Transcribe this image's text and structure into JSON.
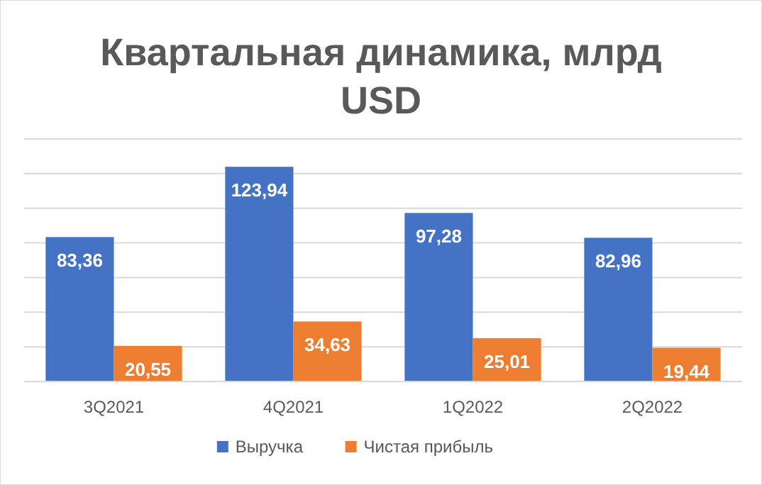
{
  "chart_data": {
    "type": "bar",
    "title": "Квартальная динамика, млрд USD",
    "categories": [
      "3Q2021",
      "4Q2021",
      "1Q2022",
      "2Q2022"
    ],
    "series": [
      {
        "name": "Выручка",
        "color": "#4472c4",
        "values": [
          83.36,
          123.94,
          97.28,
          82.96
        ],
        "value_labels": [
          "83,36",
          "123,94",
          "97,28",
          "82,96"
        ]
      },
      {
        "name": "Чистая прибыль",
        "color": "#ed7d31",
        "values": [
          20.55,
          34.63,
          25.01,
          19.44
        ],
        "value_labels": [
          "20,55",
          "34,63",
          "25,01",
          "19,44"
        ]
      }
    ],
    "ylim": [
      0,
      140
    ],
    "yticks": [
      {
        "value": 0,
        "label": null
      },
      {
        "value": 20,
        "label": null
      },
      {
        "value": 40,
        "label": null
      },
      {
        "value": 60,
        "label": null
      },
      {
        "value": 80,
        "label": null
      },
      {
        "value": 100,
        "label": null
      },
      {
        "value": 120,
        "label": null
      },
      {
        "value": 140,
        "label": null
      }
    ],
    "tick_labels": "x",
    "grid": "y",
    "legend": "bottom"
  }
}
